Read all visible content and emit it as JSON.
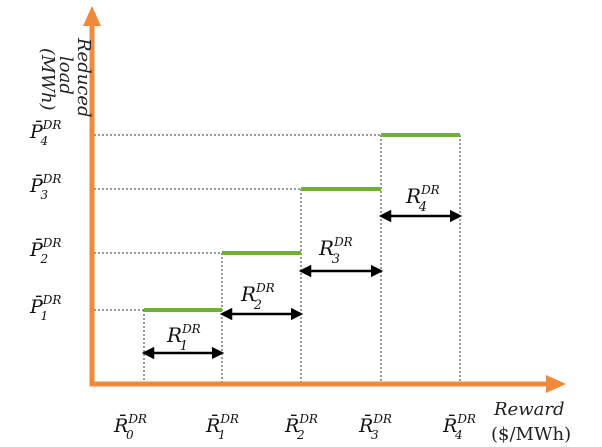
{
  "y_axis": {
    "label_line1": "Reduced",
    "label_line2": "load",
    "label_line3": "(MWh)"
  },
  "x_axis": {
    "label": "Reward",
    "unit": "($/MWh)"
  },
  "y_ticks": [
    {
      "base": "P̄",
      "sub": "1",
      "sup": "DR"
    },
    {
      "base": "P̄",
      "sub": "2",
      "sup": "DR"
    },
    {
      "base": "P̄",
      "sub": "3",
      "sup": "DR"
    },
    {
      "base": "P̄",
      "sub": "4",
      "sup": "DR"
    }
  ],
  "x_ticks": [
    {
      "base": "R̄",
      "sub": "0",
      "sup": "DR"
    },
    {
      "base": "R̄",
      "sub": "1",
      "sup": "DR"
    },
    {
      "base": "R̄",
      "sub": "2",
      "sup": "DR"
    },
    {
      "base": "R̄",
      "sub": "3",
      "sup": "DR"
    },
    {
      "base": "R̄",
      "sub": "4",
      "sup": "DR"
    }
  ],
  "interval_labels": [
    {
      "base": "R",
      "sub": "1",
      "sup": "DR"
    },
    {
      "base": "R",
      "sub": "2",
      "sup": "DR"
    },
    {
      "base": "R",
      "sub": "3",
      "sup": "DR"
    },
    {
      "base": "R",
      "sub": "4",
      "sup": "DR"
    }
  ],
  "colors": {
    "axis": "#F08A3A",
    "step": "#6FAF3C",
    "guide": "#333333",
    "arrow": "#000000"
  }
}
